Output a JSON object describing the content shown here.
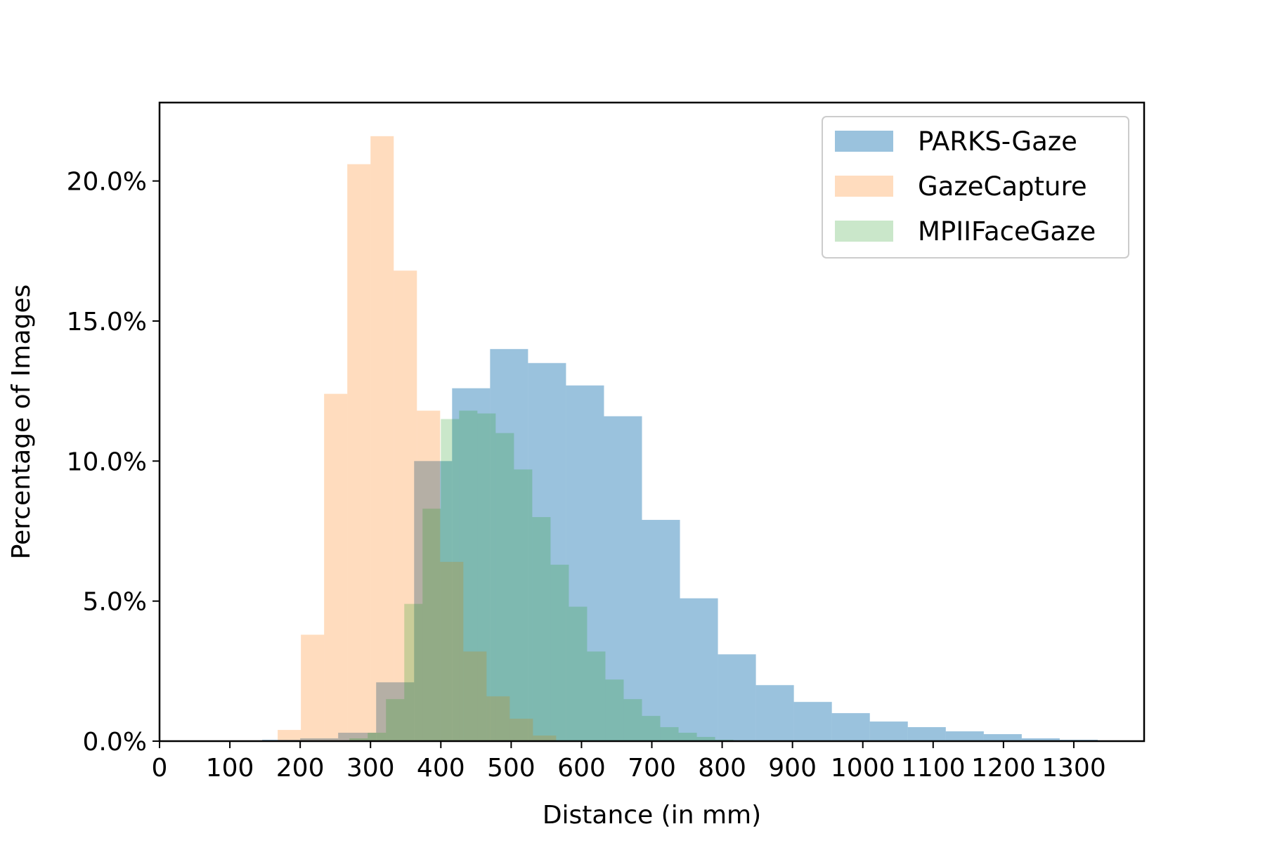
{
  "chart_data": {
    "type": "histogram",
    "title": "",
    "xlabel": "Distance (in mm)",
    "ylabel": "Percentage of Images",
    "xlim": [
      0,
      1400
    ],
    "ylim": [
      0,
      22.8
    ],
    "xticks": [
      0,
      100,
      200,
      300,
      400,
      500,
      600,
      700,
      800,
      900,
      1000,
      1100,
      1200,
      1300
    ],
    "yticks": [
      0,
      5,
      10,
      15,
      20
    ],
    "ytick_labels": [
      "0.0%",
      "5.0%",
      "10.0%",
      "15.0%",
      "20.0%"
    ],
    "legend_position": "top-right",
    "grid": false,
    "series": [
      {
        "name": "PARKS-Gaze",
        "color": "#1f77b4",
        "opacity": 0.45,
        "bin_edges": [
          146,
          200,
          254,
          308,
          362,
          416,
          470,
          524,
          578,
          632,
          686,
          740,
          794,
          848,
          902,
          956,
          1010,
          1064,
          1118,
          1172,
          1226,
          1280,
          1334
        ],
        "values": [
          0.05,
          0.1,
          0.3,
          2.1,
          10.0,
          12.6,
          14.0,
          13.5,
          12.7,
          11.6,
          7.9,
          5.1,
          3.1,
          2.0,
          1.4,
          1.0,
          0.7,
          0.5,
          0.35,
          0.25,
          0.1,
          0.05
        ]
      },
      {
        "name": "GazeCapture",
        "color": "#ff7f0e",
        "opacity": 0.27,
        "bin_edges": [
          168,
          201,
          234,
          267,
          300,
          333,
          366,
          399,
          432,
          465,
          498,
          531,
          564
        ],
        "values": [
          0.4,
          3.8,
          12.4,
          20.6,
          21.6,
          16.8,
          11.8,
          6.4,
          3.2,
          1.6,
          0.8,
          0.2
        ]
      },
      {
        "name": "MPIIFaceGaze",
        "color": "#2ca02c",
        "opacity": 0.25,
        "bin_edges": [
          270,
          296,
          322,
          348,
          374,
          400,
          426,
          452,
          478,
          504,
          530,
          556,
          582,
          608,
          634,
          660,
          686,
          712,
          738,
          764,
          790,
          816
        ],
        "values": [
          0.1,
          0.3,
          1.5,
          4.9,
          8.3,
          11.5,
          11.8,
          11.7,
          11.0,
          9.7,
          8.0,
          6.3,
          4.8,
          3.2,
          2.2,
          1.5,
          0.9,
          0.5,
          0.3,
          0.15,
          0.05
        ]
      }
    ]
  }
}
